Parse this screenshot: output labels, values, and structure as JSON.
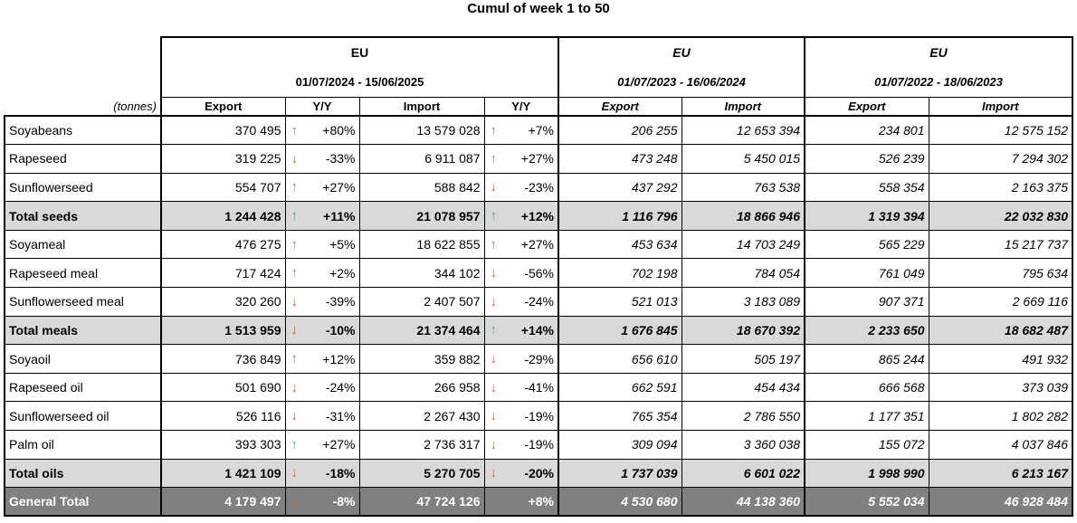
{
  "title": "Cumul of week 1 to 50",
  "unit_label": "(tonnes)",
  "colors": {
    "up_arrow": "#5f9e86",
    "down_arrow": "#e0583a",
    "total_row": "#d9d9d9",
    "general_total_row": "#808080"
  },
  "periods": [
    {
      "region": "EU",
      "range": "01/07/2024 - 15/06/2025"
    },
    {
      "region": "EU",
      "range": "01/07/2023 - 16/06/2024"
    },
    {
      "region": "EU",
      "range": "01/07/2022 - 18/06/2023"
    }
  ],
  "columns": {
    "export": "Export",
    "yy": "Y/Y",
    "import": "Import"
  },
  "rows": [
    {
      "name": "Soyabeans",
      "type": "normal",
      "export": "370 495",
      "exp_dir": "up",
      "exp_yy": "+80%",
      "import": "13 579 028",
      "imp_dir": "up",
      "imp_yy": "+7%",
      "p2_export": "206 255",
      "p2_import": "12 653 394",
      "p3_export": "234 801",
      "p3_import": "12 575 152"
    },
    {
      "name": "Rapeseed",
      "type": "normal",
      "export": "319 225",
      "exp_dir": "down",
      "exp_yy": "-33%",
      "import": "6 911 087",
      "imp_dir": "up",
      "imp_yy": "+27%",
      "p2_export": "473 248",
      "p2_import": "5 450 015",
      "p3_export": "526 239",
      "p3_import": "7 294 302"
    },
    {
      "name": "Sunflowerseed",
      "type": "normal",
      "export": "554 707",
      "exp_dir": "up",
      "exp_yy": "+27%",
      "import": "588 842",
      "imp_dir": "down",
      "imp_yy": "-23%",
      "p2_export": "437 292",
      "p2_import": "763 538",
      "p3_export": "558 354",
      "p3_import": "2 163 375"
    },
    {
      "name": "Total seeds",
      "type": "total",
      "export": "1 244 428",
      "exp_dir": "up",
      "exp_yy": "+11%",
      "import": "21 078 957",
      "imp_dir": "up",
      "imp_yy": "+12%",
      "p2_export": "1 116 796",
      "p2_import": "18 866 946",
      "p3_export": "1 319 394",
      "p3_import": "22 032 830"
    },
    {
      "name": "Soyameal",
      "type": "normal",
      "export": "476 275",
      "exp_dir": "up",
      "exp_yy": "+5%",
      "import": "18 622 855",
      "imp_dir": "up",
      "imp_yy": "+27%",
      "p2_export": "453 634",
      "p2_import": "14 703 249",
      "p3_export": "565 229",
      "p3_import": "15 217 737"
    },
    {
      "name": "Rapeseed meal",
      "type": "normal",
      "export": "717 424",
      "exp_dir": "up",
      "exp_yy": "+2%",
      "import": "344 102",
      "imp_dir": "down",
      "imp_yy": "-56%",
      "p2_export": "702 198",
      "p2_import": "784 054",
      "p3_export": "761 049",
      "p3_import": "795 634"
    },
    {
      "name": "Sunflowerseed meal",
      "type": "normal",
      "export": "320 260",
      "exp_dir": "down",
      "exp_yy": "-39%",
      "import": "2 407 507",
      "imp_dir": "down",
      "imp_yy": "-24%",
      "p2_export": "521 013",
      "p2_import": "3 183 089",
      "p3_export": "907 371",
      "p3_import": "2 669 116"
    },
    {
      "name": "Total meals",
      "type": "total",
      "export": "1 513 959",
      "exp_dir": "down",
      "exp_yy": "-10%",
      "import": "21 374 464",
      "imp_dir": "up",
      "imp_yy": "+14%",
      "p2_export": "1 676 845",
      "p2_import": "18 670 392",
      "p3_export": "2 233 650",
      "p3_import": "18 682 487"
    },
    {
      "name": "Soyaoil",
      "type": "normal",
      "export": "736 849",
      "exp_dir": "up",
      "exp_yy": "+12%",
      "import": "359 882",
      "imp_dir": "down",
      "imp_yy": "-29%",
      "p2_export": "656 610",
      "p2_import": "505 197",
      "p3_export": "865 244",
      "p3_import": "491 932"
    },
    {
      "name": "Rapeseed oil",
      "type": "normal",
      "export": "501 690",
      "exp_dir": "down",
      "exp_yy": "-24%",
      "import": "266 958",
      "imp_dir": "down",
      "imp_yy": "-41%",
      "p2_export": "662 591",
      "p2_import": "454 434",
      "p3_export": "666 568",
      "p3_import": "373 039"
    },
    {
      "name": "Sunflowerseed oil",
      "type": "normal",
      "export": "526 116",
      "exp_dir": "down",
      "exp_yy": "-31%",
      "import": "2 267 430",
      "imp_dir": "down",
      "imp_yy": "-19%",
      "p2_export": "765 354",
      "p2_import": "2 786 550",
      "p3_export": "1 177 351",
      "p3_import": "1 802 282"
    },
    {
      "name": "Palm oil",
      "type": "normal",
      "export": "393 303",
      "exp_dir": "up",
      "exp_yy": "+27%",
      "import": "2 736 317",
      "imp_dir": "down",
      "imp_yy": "-19%",
      "p2_export": "309 094",
      "p2_import": "3 360 038",
      "p3_export": "155 072",
      "p3_import": "4 037 846"
    },
    {
      "name": "Total oils",
      "type": "total",
      "export": "1 421 109",
      "exp_dir": "down",
      "exp_yy": "-18%",
      "import": "5 270 705",
      "imp_dir": "down",
      "imp_yy": "-20%",
      "p2_export": "1 737 039",
      "p2_import": "6 601 022",
      "p3_export": "1 998 990",
      "p3_import": "6 213 167"
    },
    {
      "name": "General Total",
      "type": "general",
      "export": "4 179 497",
      "exp_dir": "down",
      "exp_yy": "-8%",
      "import": "47 724 126",
      "imp_dir": "up",
      "imp_yy": "+8%",
      "p2_export": "4 530 680",
      "p2_import": "44 138 360",
      "p3_export": "5 552 034",
      "p3_import": "46 928 484"
    }
  ]
}
